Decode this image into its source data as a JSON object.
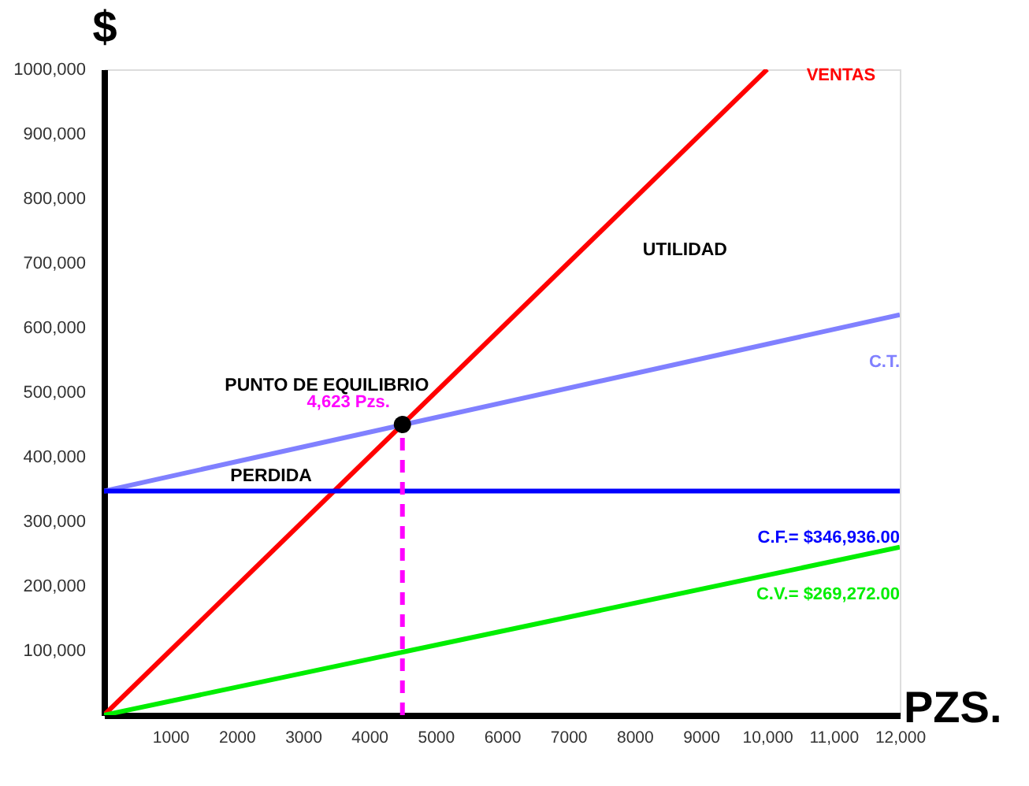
{
  "chart_data": {
    "type": "line",
    "xlabel": "PZS.",
    "ylabel": "$",
    "xlim": [
      0,
      12000
    ],
    "ylim": [
      0,
      1000000
    ],
    "xticks": [
      1000,
      2000,
      3000,
      4000,
      5000,
      6000,
      7000,
      8000,
      9000,
      {
        "value": 10000,
        "label": "10,000"
      },
      {
        "value": 11000,
        "label": "11,000"
      },
      {
        "value": 12000,
        "label": "12,000"
      }
    ],
    "yticks": [
      {
        "value": 100000,
        "label": "100,000"
      },
      {
        "value": 200000,
        "label": "200,000"
      },
      {
        "value": 300000,
        "label": "300,000"
      },
      {
        "value": 400000,
        "label": "400,000"
      },
      {
        "value": 500000,
        "label": "500,000"
      },
      {
        "value": 600000,
        "label": "600,000"
      },
      {
        "value": 700000,
        "label": "700,000"
      },
      {
        "value": 800000,
        "label": "800,000"
      },
      {
        "value": 900000,
        "label": "900,000"
      },
      {
        "value": 1000000,
        "label": "1000,000"
      }
    ],
    "grid": false,
    "marker": "none",
    "line_style": "solid",
    "series": [
      {
        "name": "VENTAS",
        "color": "#ff0000",
        "x": [
          0,
          10000
        ],
        "values": [
          0,
          1000000
        ]
      },
      {
        "name": "C.T.",
        "color": "#8080ff",
        "x": [
          0,
          12000
        ],
        "values": [
          347000,
          620000
        ]
      },
      {
        "name": "C.F.= $346,936.00",
        "color": "#0000ff",
        "x": [
          0,
          12000
        ],
        "values": [
          347000,
          347000
        ]
      },
      {
        "name": "C.V.= $269,272.00",
        "color": "#00ee00",
        "x": [
          0,
          12000
        ],
        "values": [
          0,
          260000
        ]
      },
      {
        "name": "4,623 Pzs.",
        "color": "#ff00ff",
        "line_style": "dashed",
        "x": [
          4500,
          4500
        ],
        "values": [
          0,
          450000
        ]
      },
      {
        "type": "scatter",
        "marker": "circle",
        "color": "#000000",
        "x": [
          4500
        ],
        "values": [
          450000
        ]
      }
    ],
    "annotations": [
      "PUNTO DE EQUILIBRIO",
      "UTILIDAD",
      "PERDIDA"
    ]
  }
}
